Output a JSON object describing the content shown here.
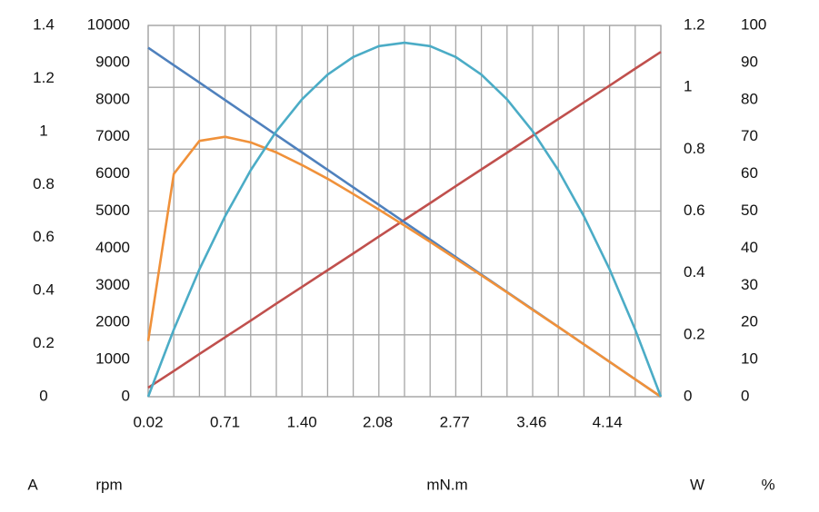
{
  "chart_data": {
    "type": "line",
    "x_label": "mN.m",
    "x": [
      0.02,
      0.25,
      0.48,
      0.71,
      0.94,
      1.17,
      1.4,
      1.63,
      1.86,
      2.09,
      2.32,
      2.55,
      2.78,
      3.01,
      3.24,
      3.47,
      3.7,
      3.93,
      4.16,
      4.39,
      4.62
    ],
    "xlim": [
      0.02,
      4.62
    ],
    "xticks": [
      0.02,
      0.71,
      {
        "value": 1.4,
        "label": "1.40"
      },
      2.08,
      2.77,
      3.46,
      4.14
    ],
    "x_grid": true,
    "y_axes": [
      {
        "label": "A",
        "side": "left",
        "lim": [
          0,
          1.4
        ],
        "ticks": [
          0,
          0.2,
          0.4,
          0.6,
          0.8,
          1,
          1.2,
          1.4
        ],
        "grid": false
      },
      {
        "label": "rpm",
        "side": "left",
        "lim": [
          0,
          10000
        ],
        "ticks": [
          0,
          1000,
          2000,
          3000,
          4000,
          5000,
          6000,
          7000,
          8000,
          9000,
          10000
        ],
        "grid": false
      },
      {
        "label": "W",
        "side": "right",
        "lim": [
          0,
          1.2
        ],
        "ticks": [
          0,
          0.2,
          0.4,
          0.6,
          0.8,
          1,
          1.2
        ],
        "grid": true
      },
      {
        "label": "%",
        "side": "right",
        "lim": [
          0,
          100
        ],
        "ticks": [
          0,
          10,
          20,
          30,
          40,
          50,
          60,
          70,
          80,
          90,
          100
        ],
        "grid": false
      }
    ],
    "series": [
      {
        "axis": 0,
        "color": "#c0504d",
        "values": [
          0.034,
          0.097,
          0.161,
          0.224,
          0.287,
          0.351,
          0.414,
          0.477,
          0.54,
          0.604,
          0.667,
          0.73,
          0.794,
          0.857,
          0.92,
          0.984,
          1.047,
          1.11,
          1.173,
          1.237,
          1.3
        ]
      },
      {
        "axis": 1,
        "color": "#4f81bd",
        "values": [
          9400,
          8930,
          8460,
          7990,
          7520,
          7050,
          6580,
          6110,
          5640,
          5170,
          4700,
          4230,
          3760,
          3290,
          2820,
          2350,
          1880,
          1410,
          940,
          470,
          0
        ]
      },
      {
        "axis": 3,
        "color": "#f0913a",
        "values": [
          15,
          60,
          68.9,
          70,
          68.5,
          65.8,
          62.4,
          58.7,
          54.6,
          50.4,
          46.1,
          41.7,
          37.2,
          32.7,
          28.1,
          23.4,
          18.8,
          14.1,
          9.4,
          4.7,
          0
        ]
      },
      {
        "axis": 2,
        "color": "#4bacc6",
        "values": [
          0,
          0.217,
          0.412,
          0.583,
          0.732,
          0.858,
          0.961,
          1.041,
          1.098,
          1.133,
          1.144,
          1.133,
          1.098,
          1.041,
          0.961,
          0.858,
          0.732,
          0.583,
          0.412,
          0.217,
          0
        ]
      }
    ]
  }
}
